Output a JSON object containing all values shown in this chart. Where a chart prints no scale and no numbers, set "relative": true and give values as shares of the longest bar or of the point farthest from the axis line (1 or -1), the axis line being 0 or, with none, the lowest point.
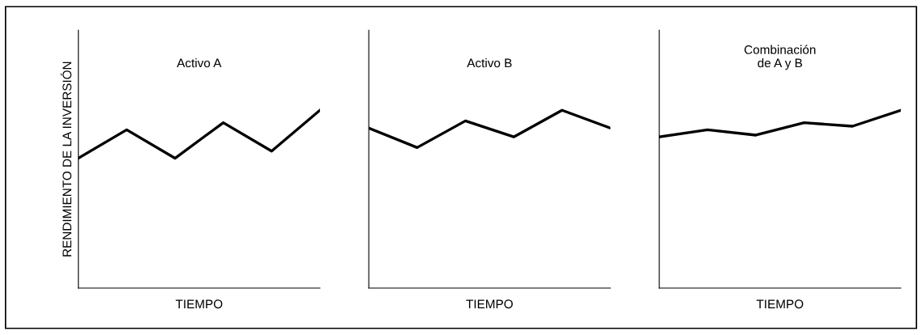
{
  "chart_data": [
    {
      "type": "line",
      "title": "Activo A",
      "xlabel": "TIEMPO",
      "ylabel": "RENDIMIENTO DE LA INVERSIÓN",
      "relative": true,
      "tick_labels": false,
      "grid": false,
      "legend": false,
      "marker": "none",
      "line_style": "solid",
      "categories": [
        null,
        null,
        null,
        null,
        null,
        null
      ],
      "series": [
        {
          "color": "#000000",
          "values": [
            0.73,
            0.89,
            0.73,
            0.93,
            0.77,
            1
          ]
        }
      ]
    },
    {
      "type": "line",
      "title": "Activo B",
      "xlabel": "TIEMPO",
      "relative": true,
      "tick_labels": false,
      "grid": false,
      "legend": false,
      "marker": "none",
      "line_style": "solid",
      "categories": [
        null,
        null,
        null,
        null,
        null,
        null
      ],
      "series": [
        {
          "color": "#000000",
          "values": [
            0.9,
            0.79,
            0.94,
            0.85,
            1,
            0.9
          ]
        }
      ]
    },
    {
      "type": "line",
      "title": "Combinación\nde A y B",
      "xlabel": "TIEMPO",
      "relative": true,
      "tick_labels": false,
      "grid": false,
      "legend": false,
      "marker": "none",
      "line_style": "solid",
      "categories": [
        null,
        null,
        null,
        null,
        null,
        null
      ],
      "series": [
        {
          "color": "#000000",
          "values": [
            0.85,
            0.89,
            0.86,
            0.93,
            0.91,
            1
          ]
        }
      ]
    }
  ]
}
